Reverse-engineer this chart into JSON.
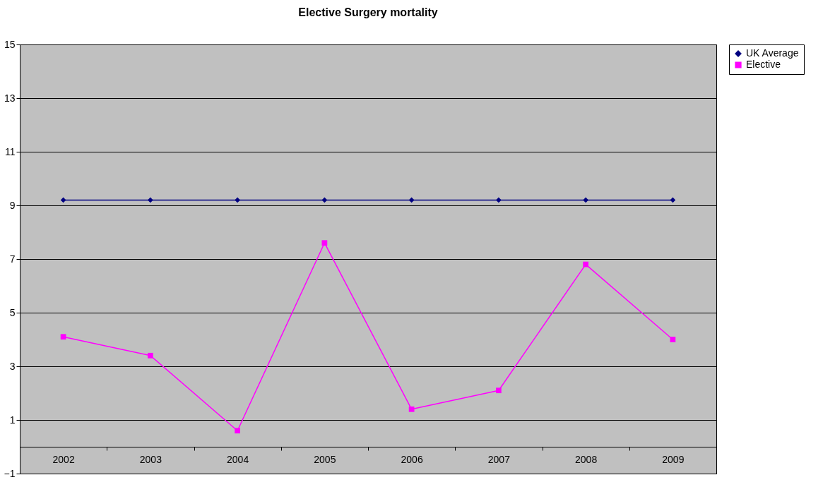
{
  "chart_data": {
    "type": "line",
    "title": "Elective Surgery mortality",
    "categories": [
      "2002",
      "2003",
      "2004",
      "2005",
      "2006",
      "2007",
      "2008",
      "2009"
    ],
    "series": [
      {
        "name": "UK Average",
        "color": "#000080",
        "marker": "diamond",
        "values": [
          9.2,
          9.2,
          9.2,
          9.2,
          9.2,
          9.2,
          9.2,
          9.2
        ]
      },
      {
        "name": "Elective",
        "color": "#ff00ff",
        "marker": "square",
        "values": [
          4.1,
          3.4,
          0.6,
          7.6,
          1.4,
          2.1,
          6.8,
          4.0
        ]
      }
    ],
    "ylim": [
      -1,
      15
    ],
    "yticks": [
      -1,
      1,
      3,
      5,
      7,
      9,
      11,
      13,
      15
    ],
    "grid": "y",
    "legend": "right",
    "line_style": "solid"
  }
}
